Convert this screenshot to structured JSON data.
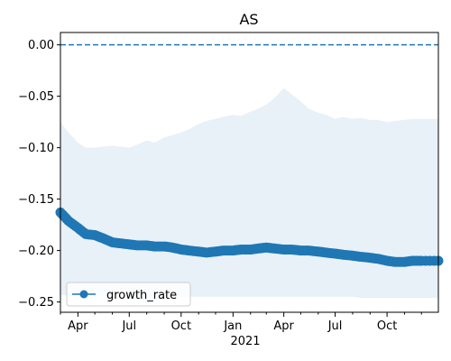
{
  "chart_data": {
    "type": "line",
    "title": "AS",
    "xlabel": "",
    "ylabel": "",
    "x_range": [
      "2020-03-01",
      "2021-12-31"
    ],
    "ylim": [
      -0.26,
      0.012
    ],
    "y_ticks": [
      0.0,
      -0.05,
      -0.1,
      -0.15,
      -0.2,
      -0.25
    ],
    "y_tick_labels": [
      "0.00",
      "−0.05",
      "−0.10",
      "−0.15",
      "−0.20",
      "−0.25"
    ],
    "x_ticks": [
      {
        "date": "2020-04-01",
        "label": "Apr"
      },
      {
        "date": "2020-07-01",
        "label": "Jul"
      },
      {
        "date": "2020-10-01",
        "label": "Oct"
      },
      {
        "date": "2021-01-01",
        "label": "Jan"
      },
      {
        "date": "2021-04-01",
        "label": "Apr"
      },
      {
        "date": "2021-07-01",
        "label": "Jul"
      },
      {
        "date": "2021-10-01",
        "label": "Oct"
      }
    ],
    "x_year_label": "2021",
    "reference_line": {
      "y": 0.0,
      "style": "dashed",
      "color": "#1f77b4"
    },
    "series": [
      {
        "name": "growth_rate",
        "color": "#1f77b4",
        "marker": "circle",
        "x": [
          "2020-03-01",
          "2020-03-15",
          "2020-04-01",
          "2020-04-15",
          "2020-05-01",
          "2020-05-15",
          "2020-06-01",
          "2020-06-15",
          "2020-07-01",
          "2020-07-15",
          "2020-08-01",
          "2020-08-15",
          "2020-09-01",
          "2020-09-15",
          "2020-10-01",
          "2020-10-15",
          "2020-11-01",
          "2020-11-15",
          "2020-12-01",
          "2020-12-15",
          "2021-01-01",
          "2021-01-15",
          "2021-02-01",
          "2021-02-15",
          "2021-03-01",
          "2021-03-15",
          "2021-04-01",
          "2021-04-15",
          "2021-05-01",
          "2021-05-15",
          "2021-06-01",
          "2021-06-15",
          "2021-07-01",
          "2021-07-15",
          "2021-08-01",
          "2021-08-15",
          "2021-09-01",
          "2021-09-15",
          "2021-10-01",
          "2021-10-15",
          "2021-11-01",
          "2021-11-15",
          "2021-12-01",
          "2021-12-31"
        ],
        "y": [
          -0.163,
          -0.171,
          -0.178,
          -0.184,
          -0.185,
          -0.188,
          -0.192,
          -0.193,
          -0.194,
          -0.195,
          -0.195,
          -0.196,
          -0.196,
          -0.197,
          -0.199,
          -0.2,
          -0.201,
          -0.202,
          -0.201,
          -0.2,
          -0.2,
          -0.199,
          -0.199,
          -0.198,
          -0.197,
          -0.198,
          -0.199,
          -0.199,
          -0.2,
          -0.2,
          -0.201,
          -0.202,
          -0.203,
          -0.204,
          -0.205,
          -0.206,
          -0.207,
          -0.208,
          -0.21,
          -0.211,
          -0.211,
          -0.21,
          -0.21,
          -0.21
        ],
        "band_lower": [
          -0.243,
          -0.244,
          -0.244,
          -0.244,
          -0.244,
          -0.244,
          -0.245,
          -0.245,
          -0.245,
          -0.245,
          -0.245,
          -0.245,
          -0.245,
          -0.245,
          -0.245,
          -0.245,
          -0.245,
          -0.245,
          -0.245,
          -0.245,
          -0.245,
          -0.245,
          -0.245,
          -0.245,
          -0.245,
          -0.245,
          -0.245,
          -0.245,
          -0.245,
          -0.245,
          -0.245,
          -0.245,
          -0.245,
          -0.245,
          -0.245,
          -0.246,
          -0.246,
          -0.246,
          -0.246,
          -0.246,
          -0.246,
          -0.246,
          -0.246,
          -0.246
        ],
        "band_upper": [
          -0.075,
          -0.085,
          -0.095,
          -0.1,
          -0.1,
          -0.099,
          -0.098,
          -0.099,
          -0.1,
          -0.097,
          -0.093,
          -0.095,
          -0.09,
          -0.088,
          -0.085,
          -0.082,
          -0.077,
          -0.074,
          -0.072,
          -0.07,
          -0.068,
          -0.069,
          -0.065,
          -0.062,
          -0.058,
          -0.052,
          -0.042,
          -0.048,
          -0.055,
          -0.062,
          -0.066,
          -0.068,
          -0.072,
          -0.07,
          -0.072,
          -0.071,
          -0.073,
          -0.073,
          -0.075,
          -0.074,
          -0.073,
          -0.072,
          -0.072,
          -0.072
        ]
      }
    ],
    "legend": {
      "position": "lower-left",
      "entries": [
        "growth_rate"
      ]
    },
    "grid": false
  }
}
